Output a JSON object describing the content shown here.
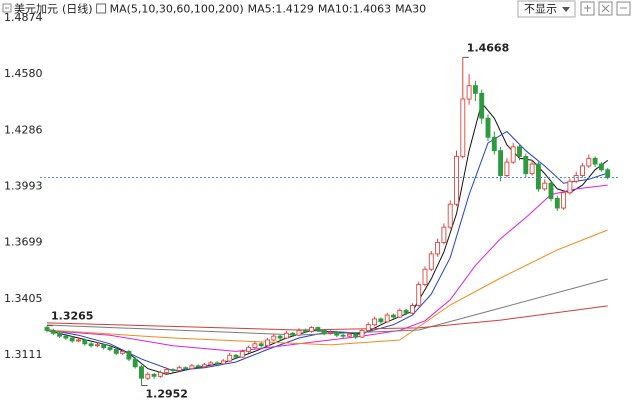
{
  "chart_data": {
    "type": "candlestick",
    "title": "美元加元",
    "period": "(日线)",
    "indicator": "MA(5,10,30,60,100,200)",
    "controls": [
      "不显示"
    ],
    "up_color": "#e0433b",
    "down_color": "#2e9a3f",
    "last_line_color": "#4a90d9",
    "ylim": [
      1.2876,
      1.4968
    ],
    "yticks": [
      1.3111,
      1.3405,
      1.3699,
      1.3993,
      1.4286,
      {
        "value": 1.458,
        "label": "1.4580"
      },
      1.4874
    ],
    "candles": [
      [
        1.3255,
        1.3265,
        1.323,
        1.324
      ],
      [
        1.324,
        1.325,
        1.3215,
        1.3225
      ],
      [
        1.3225,
        1.3235,
        1.32,
        1.321
      ],
      [
        1.321,
        1.3222,
        1.319,
        1.32
      ],
      [
        1.32,
        1.321,
        1.3175,
        1.3185
      ],
      [
        1.3185,
        1.3205,
        1.3178,
        1.319
      ],
      [
        1.319,
        1.3198,
        1.316,
        1.317
      ],
      [
        1.317,
        1.318,
        1.315,
        1.316
      ],
      [
        1.316,
        1.3178,
        1.3152,
        1.3165
      ],
      [
        1.3165,
        1.3172,
        1.314,
        1.315
      ],
      [
        1.315,
        1.316,
        1.313,
        1.314
      ],
      [
        1.314,
        1.315,
        1.311,
        1.312
      ],
      [
        1.312,
        1.3142,
        1.3112,
        1.313
      ],
      [
        1.313,
        1.3138,
        1.308,
        1.309
      ],
      [
        1.309,
        1.31,
        1.304,
        1.305
      ],
      [
        1.305,
        1.306,
        1.2952,
        1.299
      ],
      [
        1.299,
        1.3022,
        1.298,
        1.301
      ],
      [
        1.301,
        1.3018,
        1.2988,
        1.3
      ],
      [
        1.3,
        1.303,
        1.2992,
        1.302
      ],
      [
        1.302,
        1.3045,
        1.3012,
        1.3035
      ],
      [
        1.3035,
        1.3042,
        1.302,
        1.303
      ],
      [
        1.303,
        1.3055,
        1.3025,
        1.3045
      ],
      [
        1.3045,
        1.3052,
        1.3032,
        1.304
      ],
      [
        1.304,
        1.3065,
        1.3035,
        1.3055
      ],
      [
        1.3055,
        1.3062,
        1.3042,
        1.305
      ],
      [
        1.305,
        1.307,
        1.3045,
        1.306
      ],
      [
        1.306,
        1.308,
        1.3052,
        1.307
      ],
      [
        1.307,
        1.3078,
        1.3058,
        1.3065
      ],
      [
        1.3065,
        1.309,
        1.306,
        1.308
      ],
      [
        1.308,
        1.3122,
        1.3075,
        1.311
      ],
      [
        1.311,
        1.3118,
        1.3092,
        1.31
      ],
      [
        1.31,
        1.314,
        1.3095,
        1.313
      ],
      [
        1.313,
        1.316,
        1.3122,
        1.315
      ],
      [
        1.315,
        1.3182,
        1.3142,
        1.317
      ],
      [
        1.317,
        1.3178,
        1.315,
        1.316
      ],
      [
        1.316,
        1.32,
        1.3155,
        1.319
      ],
      [
        1.319,
        1.3222,
        1.3182,
        1.321
      ],
      [
        1.321,
        1.3218,
        1.319,
        1.32
      ],
      [
        1.32,
        1.3238,
        1.3195,
        1.3225
      ],
      [
        1.3225,
        1.3232,
        1.3205,
        1.3215
      ],
      [
        1.3215,
        1.3252,
        1.321,
        1.324
      ],
      [
        1.324,
        1.325,
        1.3225,
        1.3235
      ],
      [
        1.3235,
        1.3262,
        1.3228,
        1.3255
      ],
      [
        1.3255,
        1.326,
        1.3232,
        1.324
      ],
      [
        1.324,
        1.3248,
        1.3215,
        1.3225
      ],
      [
        1.3225,
        1.324,
        1.3218,
        1.323
      ],
      [
        1.323,
        1.3238,
        1.3205,
        1.3215
      ],
      [
        1.3215,
        1.3222,
        1.32,
        1.321
      ],
      [
        1.321,
        1.323,
        1.3205,
        1.322
      ],
      [
        1.322,
        1.3228,
        1.3195,
        1.3205
      ],
      [
        1.3205,
        1.325,
        1.32,
        1.324
      ],
      [
        1.324,
        1.3282,
        1.3235,
        1.327
      ],
      [
        1.327,
        1.3312,
        1.3262,
        1.33
      ],
      [
        1.33,
        1.3308,
        1.3275,
        1.3285
      ],
      [
        1.3285,
        1.3332,
        1.328,
        1.332
      ],
      [
        1.332,
        1.3328,
        1.33,
        1.331
      ],
      [
        1.331,
        1.3355,
        1.3305,
        1.3345
      ],
      [
        1.3345,
        1.3352,
        1.3322,
        1.333
      ],
      [
        1.333,
        1.3382,
        1.3325,
        1.337
      ],
      [
        1.337,
        1.3495,
        1.3365,
        1.348
      ],
      [
        1.348,
        1.3575,
        1.347,
        1.356
      ],
      [
        1.356,
        1.3655,
        1.355,
        1.364
      ],
      [
        1.364,
        1.372,
        1.3625,
        1.37
      ],
      [
        1.37,
        1.38,
        1.369,
        1.378
      ],
      [
        1.378,
        1.392,
        1.377,
        1.39
      ],
      [
        1.39,
        1.418,
        1.389,
        1.415
      ],
      [
        1.415,
        1.4668,
        1.414,
        1.445
      ],
      [
        1.445,
        1.458,
        1.442,
        1.452
      ],
      [
        1.452,
        1.4545,
        1.444,
        1.448
      ],
      [
        1.448,
        1.45,
        1.432,
        1.435
      ],
      [
        1.435,
        1.437,
        1.423,
        1.425
      ],
      [
        1.425,
        1.428,
        1.416,
        1.418
      ],
      [
        1.418,
        1.42,
        1.402,
        1.405
      ],
      [
        1.405,
        1.414,
        1.404,
        1.412
      ],
      [
        1.412,
        1.422,
        1.411,
        1.42
      ],
      [
        1.42,
        1.4215,
        1.413,
        1.415
      ],
      [
        1.415,
        1.4165,
        1.404,
        1.406
      ],
      [
        1.406,
        1.413,
        1.405,
        1.411
      ],
      [
        1.411,
        1.412,
        1.3965,
        1.398
      ],
      [
        1.398,
        1.403,
        1.397,
        1.401
      ],
      [
        1.401,
        1.402,
        1.3915,
        1.393
      ],
      [
        1.393,
        1.3945,
        1.3865,
        1.388
      ],
      [
        1.388,
        1.3975,
        1.387,
        1.396
      ],
      [
        1.396,
        1.4035,
        1.395,
        1.402
      ],
      [
        1.402,
        1.407,
        1.401,
        1.405
      ],
      [
        1.405,
        1.4115,
        1.404,
        1.41
      ],
      [
        1.41,
        1.416,
        1.409,
        1.414
      ],
      [
        1.414,
        1.415,
        1.4095,
        1.411
      ],
      [
        1.411,
        1.412,
        1.407,
        1.408
      ],
      [
        1.408,
        1.409,
        1.403,
        1.404
      ]
    ],
    "series": [
      {
        "name": "MA5:1.4129",
        "color": "#111111",
        "x": [
          0,
          5,
          10,
          13,
          16,
          19,
          23,
          28,
          33,
          38,
          42,
          46,
          50,
          54,
          58,
          61,
          63,
          65,
          67,
          69,
          71,
          73,
          75,
          77,
          79,
          81,
          83,
          85,
          87,
          89
        ],
        "values": [
          1.324,
          1.32,
          1.316,
          1.312,
          1.304,
          1.301,
          1.304,
          1.307,
          1.313,
          1.32,
          1.324,
          1.323,
          1.322,
          1.3285,
          1.334,
          1.351,
          1.365,
          1.385,
          1.418,
          1.443,
          1.435,
          1.421,
          1.414,
          1.413,
          1.406,
          1.398,
          1.396,
          1.4,
          1.408,
          1.4129
        ]
      },
      {
        "name": "MA10:1.4063",
        "color": "#1f3fd0",
        "x": [
          0,
          5,
          10,
          15,
          20,
          25,
          30,
          35,
          40,
          45,
          50,
          55,
          58,
          61,
          64,
          67,
          70,
          73,
          76,
          79,
          82,
          86,
          89
        ],
        "values": [
          1.3245,
          1.3215,
          1.317,
          1.309,
          1.303,
          1.3045,
          1.3075,
          1.314,
          1.32,
          1.3235,
          1.3225,
          1.327,
          1.332,
          1.343,
          1.362,
          1.395,
          1.422,
          1.428,
          1.418,
          1.41,
          1.401,
          1.403,
          1.4063
        ]
      },
      {
        "name": "MA30",
        "color": "#e020e0",
        "x": [
          0,
          10,
          20,
          30,
          40,
          50,
          56,
          60,
          64,
          68,
          72,
          76,
          80,
          84,
          89
        ],
        "values": [
          1.324,
          1.3215,
          1.316,
          1.313,
          1.317,
          1.321,
          1.324,
          1.329,
          1.34,
          1.358,
          1.372,
          1.383,
          1.395,
          1.398,
          1.4
        ]
      },
      {
        "color": "#f08a1c",
        "x": [
          0,
          20,
          45,
          56,
          64,
          72,
          81,
          89
        ],
        "values": [
          1.3242,
          1.32,
          1.3164,
          1.319,
          1.3373,
          1.3514,
          1.3661,
          1.3765
        ]
      },
      {
        "color": "#7a7a7a",
        "x": [
          0,
          40,
          59,
          72,
          89
        ],
        "values": [
          1.3268,
          1.3216,
          1.3242,
          1.3357,
          1.3509
        ]
      },
      {
        "color": "#d83a3a",
        "x": [
          0,
          40,
          59,
          72,
          89
        ],
        "values": [
          1.3279,
          1.3242,
          1.3253,
          1.3294,
          1.3368
        ]
      }
    ]
  }
}
